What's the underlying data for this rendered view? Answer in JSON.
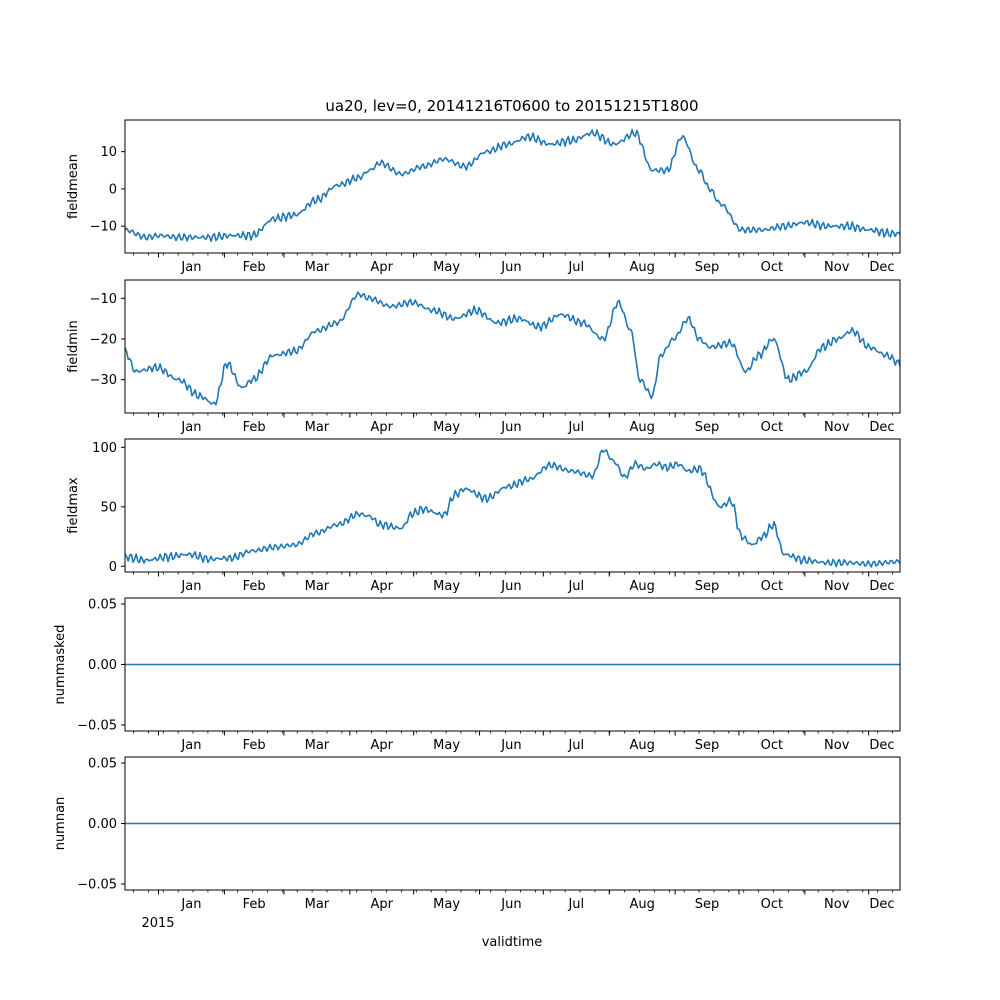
{
  "chart_data": {
    "type": "line",
    "title": "ua20, lev=0, 20141216T0600 to 20151215T1800",
    "xlabel": "validtime",
    "x_range": [
      "2014-12-16T06:00",
      "2015-12-15T18:00"
    ],
    "x_tick_labels": [
      "Jan",
      "Feb",
      "Mar",
      "Apr",
      "May",
      "Jun",
      "Jul",
      "Aug",
      "Sep",
      "Oct",
      "Nov",
      "Dec"
    ],
    "x_year_label": "2015",
    "line_color": "#1f77b4",
    "panels": [
      {
        "ylabel": "fieldmean",
        "ylim": [
          -17.2,
          18.5
        ],
        "yticks": [
          -10,
          0,
          10
        ],
        "ytick_labels": [
          "−10",
          "0",
          "10"
        ],
        "x_days": [
          0,
          10,
          16,
          25,
          40,
          50,
          60,
          70,
          80,
          90,
          100,
          110,
          115,
          120,
          130,
          140,
          150,
          160,
          170,
          180,
          190,
          200,
          210,
          220,
          230,
          240,
          248,
          255,
          262,
          270,
          275,
          280,
          290,
          300,
          310,
          320,
          330,
          340,
          350,
          360,
          364.5
        ],
        "values": [
          -11,
          -13,
          -12.5,
          -13,
          -13,
          -12.5,
          -12.5,
          -8,
          -7,
          -3,
          1,
          3,
          5,
          7,
          4,
          6,
          8,
          6,
          10,
          12,
          14,
          12,
          13,
          15,
          12,
          15,
          5,
          5,
          14,
          5,
          0,
          -4,
          -11,
          -11,
          -10,
          -9,
          -10,
          -10,
          -11,
          -12,
          -12
        ]
      },
      {
        "ylabel": "fieldmin",
        "ylim": [
          -38.2,
          -5.5
        ],
        "yticks": [
          -30,
          -20,
          -10
        ],
        "ytick_labels": [
          "−30",
          "−20",
          "−10"
        ],
        "x_days": [
          0,
          5,
          15,
          25,
          35,
          42,
          48,
          55,
          60,
          70,
          80,
          90,
          100,
          110,
          115,
          125,
          135,
          145,
          155,
          165,
          175,
          185,
          195,
          205,
          215,
          225,
          232,
          238,
          242,
          248,
          252,
          258,
          265,
          270,
          275,
          285,
          292,
          298,
          305,
          312,
          320,
          328,
          335,
          342,
          350,
          358,
          364.5
        ],
        "values": [
          -23,
          -28,
          -27,
          -30,
          -34,
          -36,
          -26,
          -32,
          -30,
          -24,
          -23,
          -18,
          -16,
          -9,
          -10,
          -12,
          -11,
          -13,
          -15,
          -13,
          -16,
          -15,
          -17,
          -14,
          -16,
          -20,
          -11,
          -18,
          -30,
          -34,
          -24,
          -20,
          -15,
          -20,
          -22,
          -21,
          -28,
          -24,
          -20,
          -30,
          -28,
          -22,
          -20,
          -18,
          -22,
          -24,
          -26
        ]
      },
      {
        "ylabel": "fieldmax",
        "ylim": [
          -4.8,
          107.0
        ],
        "yticks": [
          0,
          50,
          100
        ],
        "ytick_labels": [
          "0",
          "50",
          "100"
        ],
        "x_days": [
          0,
          10,
          20,
          30,
          40,
          50,
          60,
          70,
          80,
          90,
          100,
          110,
          115,
          120,
          130,
          135,
          140,
          150,
          155,
          160,
          170,
          180,
          190,
          200,
          210,
          220,
          225,
          230,
          235,
          240,
          245,
          250,
          255,
          260,
          265,
          270,
          280,
          285,
          290,
          295,
          300,
          305,
          310,
          320,
          330,
          340,
          350,
          364.5
        ],
        "values": [
          8,
          5,
          8,
          10,
          6,
          7,
          13,
          16,
          18,
          28,
          35,
          44,
          42,
          35,
          32,
          44,
          48,
          43,
          60,
          65,
          57,
          67,
          73,
          85,
          80,
          76,
          98,
          88,
          75,
          86,
          82,
          86,
          83,
          86,
          80,
          82,
          50,
          55,
          25,
          18,
          25,
          35,
          10,
          5,
          3,
          3,
          2,
          4
        ]
      },
      {
        "ylabel": "nummasked",
        "ylim": [
          -0.055,
          0.055
        ],
        "yticks": [
          -0.05,
          0,
          0.05
        ],
        "ytick_labels": [
          "−0.05",
          "0.00",
          "0.05"
        ],
        "x_days": [
          0,
          364.5
        ],
        "values": [
          0,
          0
        ]
      },
      {
        "ylabel": "numnan",
        "ylim": [
          -0.055,
          0.055
        ],
        "yticks": [
          -0.05,
          0,
          0.05
        ],
        "ytick_labels": [
          "−0.05",
          "0.00",
          "0.05"
        ],
        "x_days": [
          0,
          364.5
        ],
        "values": [
          0,
          0
        ]
      }
    ]
  }
}
